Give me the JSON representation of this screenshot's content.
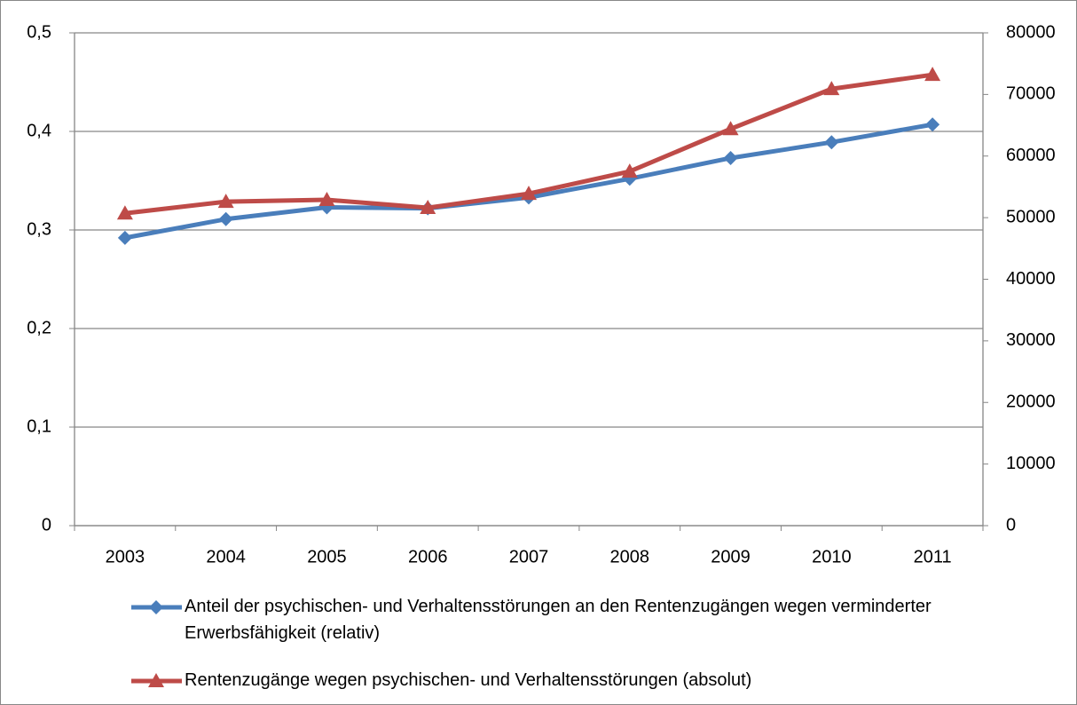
{
  "chart_data": {
    "type": "line",
    "categories": [
      "2003",
      "2004",
      "2005",
      "2006",
      "2007",
      "2008",
      "2009",
      "2010",
      "2011"
    ],
    "series": [
      {
        "name": "Anteil der psychischen- und Verhaltensstörungen an den Rentenzugängen wegen verminderter Erwerbsfähigkeit (relativ)",
        "color": "#4a7ebb",
        "marker": "diamond",
        "values": [
          0.292,
          0.311,
          0.323,
          0.322,
          0.333,
          0.352,
          0.373,
          0.389,
          0.407
        ]
      },
      {
        "name": "Rentenzugänge wegen psychischen- und Verhaltensstörungen (absolut)",
        "color": "#be4b48",
        "marker": "triangle",
        "axis": "y2",
        "values": [
          50700,
          52600,
          52900,
          51600,
          53900,
          57500,
          64400,
          70900,
          73200
        ]
      }
    ],
    "ylim": [
      0,
      0.5
    ],
    "yticks": [
      0,
      {
        "value": 0.1,
        "label": "0,1"
      },
      {
        "value": 0.2,
        "label": "0,2"
      },
      {
        "value": 0.3,
        "label": "0,3"
      },
      {
        "value": 0.4,
        "label": "0,4"
      },
      {
        "value": 0.5,
        "label": "0,5"
      }
    ],
    "y2lim": [
      0,
      80000
    ],
    "y2ticks": [
      0,
      10000,
      20000,
      30000,
      40000,
      50000,
      60000,
      70000,
      80000
    ],
    "grid": true,
    "legend": "bottom"
  }
}
